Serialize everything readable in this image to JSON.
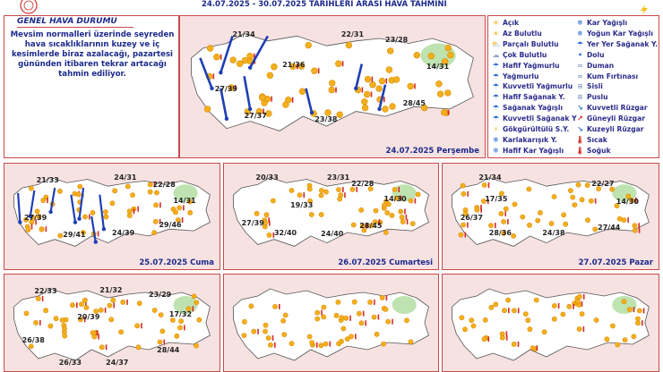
{
  "header": {
    "date_range": "24.07.2025  -  30.07.2025   TARIHLERI ARASI HAVA TAHMİNİ"
  },
  "general": {
    "title": "GENEL HAVA DURUMU",
    "text": "Mevsim normalleri üzerinde seyreden hava sıcaklıklarının  kuzey ve iç kesimlerde biraz azalacağı, pazartesi gününden itibaren tekrar artacağı tahmin ediliyor."
  },
  "legend": {
    "col1": [
      "Açık",
      "Az Bulutlu",
      "Parçalı Bulutlu",
      "Çok Bulutlu",
      "Hafif Yağmurlu",
      "Yağmurlu",
      "Kuvvetli Yağmurlu",
      "Hafif Sağanak Y.",
      "Sağanak Yağışlı",
      "Kuvvetli Sağanak Y",
      "Gökgürültülü S.Y.",
      "Karlakarışık Y.",
      "Hafif Kar Yağışlı"
    ],
    "col2": [
      "Kar Yağışlı",
      "Yoğun Kar Yağışlı",
      "Yer Yer Sağanak Y.",
      "Dolu",
      "Duman",
      "Kum Fırtınası",
      "Sisli",
      "Puslu",
      "Kuvvetli Rüzgar",
      "Güneyli Rüzgar",
      "Kuzeyli Rüzgar",
      "Sıcak",
      "Soğuk"
    ],
    "icons1": [
      "☀",
      "☀",
      "⛅",
      "☁",
      "☂",
      "☂",
      "☂",
      "☂",
      "☂",
      "☂",
      "⚡",
      "❄",
      "❄"
    ],
    "icons2": [
      "❄",
      "❄",
      "☂",
      "•",
      "≈",
      "≈",
      "≡",
      "≡",
      "↘",
      "↗",
      "↘",
      "🌡",
      "🌡"
    ],
    "colors": {
      "label": "#2b2b8c",
      "sun": "#f2b01e",
      "cloud": "#8fa3c4",
      "rain": "#2f6fd1",
      "hot": "#d22a2a",
      "cold": "#2a5fd2"
    }
  },
  "maps": [
    {
      "day": "24.07.2025 Perşembe",
      "temps": [
        "21/34",
        "22/31",
        "23/28",
        "21/36",
        "14/31",
        "27/39",
        "28/45",
        "27/37",
        "23/38"
      ]
    },
    {
      "day": "25.07.2025 Cuma",
      "temps": [
        "21/33",
        "24/31",
        "22/28",
        "14/31",
        "27/39",
        "29/41",
        "24/39",
        "29/46"
      ]
    },
    {
      "day": "26.07.2025 Cumartesi",
      "temps": [
        "20/33",
        "23/31",
        "22/28",
        "19/33",
        "14/30",
        "27/39",
        "32/40",
        "24/40",
        "28/45"
      ]
    },
    {
      "day": "27.07.2025 Pazar",
      "temps": [
        "21/34",
        "22/27",
        "17/35",
        "14/30",
        "26/37",
        "28/36",
        "24/38",
        "27/44"
      ]
    },
    {
      "day": "",
      "temps": [
        "22/33",
        "21/32",
        "23/29",
        "20/39",
        "17/32",
        "26/38",
        "28/44",
        "26/33",
        "24/37"
      ]
    },
    {
      "day": "",
      "temps": []
    },
    {
      "day": "",
      "temps": []
    }
  ]
}
